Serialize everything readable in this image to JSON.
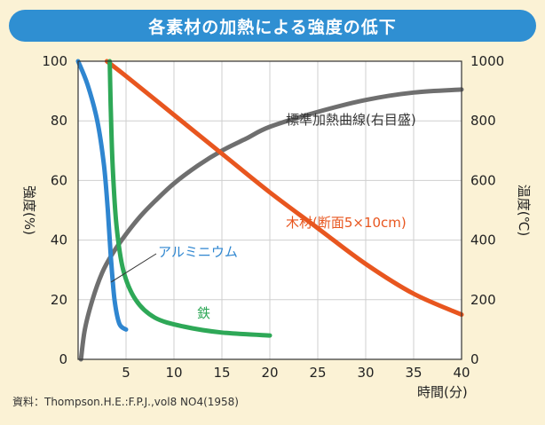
{
  "title": "各素材の加熱による強度の低下",
  "source": "資料：Thompson.H.E.:F.P.J.,vol8 NO4(1958)",
  "chart_data": {
    "type": "line",
    "x_label": "時間(分)",
    "y_left_label": "強度(%)",
    "y_right_label": "温度(℃)",
    "x_ticks": [
      5,
      10,
      15,
      20,
      25,
      30,
      35,
      40
    ],
    "y_left_ticks": [
      0,
      20,
      40,
      60,
      80,
      100
    ],
    "y_right_ticks": [
      0,
      200,
      400,
      600,
      800,
      1000
    ],
    "xlim": [
      0,
      40
    ],
    "y_left_lim": [
      0,
      100
    ],
    "y_right_lim": [
      0,
      1000
    ],
    "grid": true,
    "series": [
      {
        "name": "標準加熱曲線(右目盛)",
        "axis": "right",
        "color": "#6f6f6f",
        "x": [
          0.3,
          0.7,
          1.5,
          2.5,
          3.5,
          5,
          6.5,
          8,
          10,
          12.5,
          15,
          17.5,
          20,
          25,
          30,
          35,
          40
        ],
        "y": [
          0,
          100,
          200,
          290,
          350,
          420,
          480,
          530,
          590,
          650,
          700,
          740,
          780,
          830,
          870,
          895,
          905
        ]
      },
      {
        "name": "木材(断面5×10cm)",
        "axis": "left",
        "color": "#e8561f",
        "x": [
          3,
          5,
          10,
          15,
          20,
          25,
          30,
          35,
          40
        ],
        "y": [
          100,
          95,
          82,
          69,
          56,
          44,
          32,
          22,
          15
        ]
      },
      {
        "name": "アルミニウム",
        "axis": "left",
        "color": "#2f86d0",
        "x": [
          0,
          1,
          2,
          2.7,
          3.1,
          3.4,
          3.8,
          4.3,
          5
        ],
        "y": [
          100,
          92,
          80,
          65,
          50,
          35,
          20,
          12,
          10
        ]
      },
      {
        "name": "鉄",
        "axis": "left",
        "color": "#2ea857",
        "x": [
          3.3,
          3.4,
          3.6,
          4,
          4.7,
          6,
          8,
          11,
          15,
          20
        ],
        "y": [
          100,
          85,
          65,
          45,
          30,
          20,
          14,
          11,
          9,
          8
        ]
      }
    ]
  }
}
